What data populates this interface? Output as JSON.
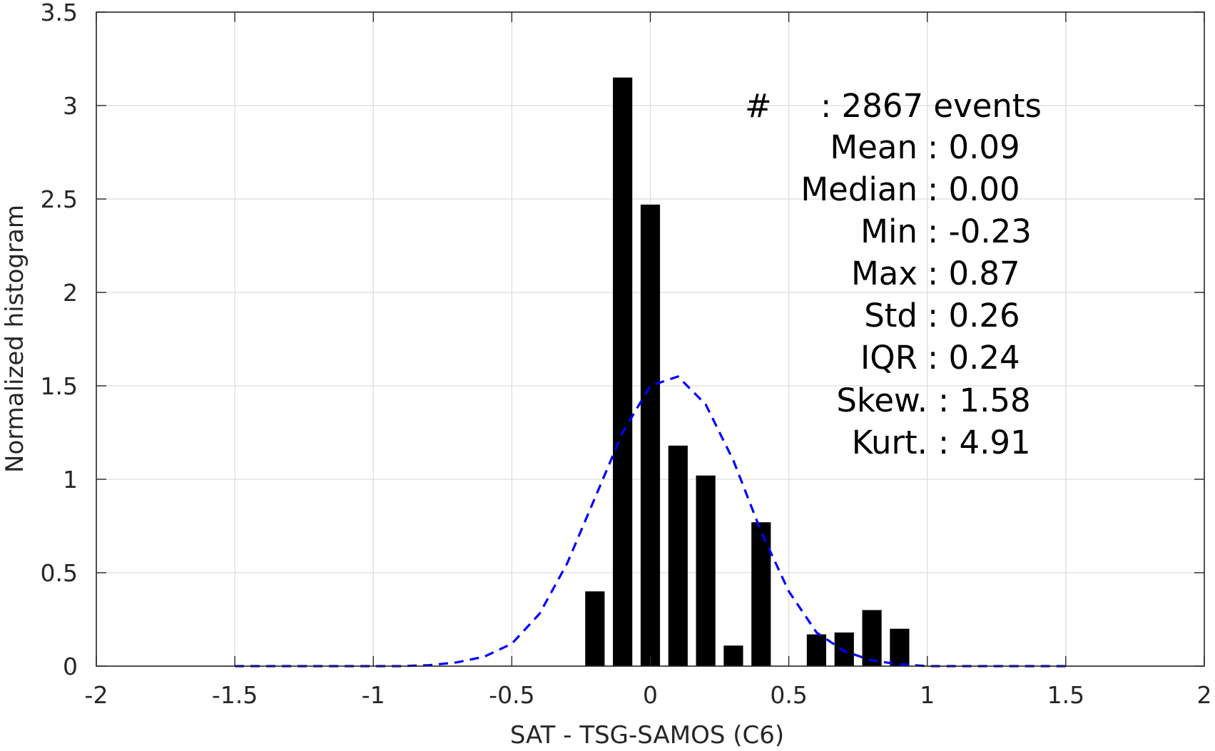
{
  "chart_data": {
    "type": "bar",
    "xlabel": "SAT - TSG-SAMOS (C6)",
    "ylabel": "Normalized histogram",
    "xlim": [
      -2,
      2
    ],
    "ylim": [
      0,
      3.5
    ],
    "grid": true,
    "x_ticks": [
      "-2",
      "-1.5",
      "-1",
      "-0.5",
      "0",
      "0.5",
      "1",
      "1.5",
      "2"
    ],
    "y_ticks": [
      "0",
      "0.5",
      "1",
      "1.5",
      "2",
      "2.5",
      "3",
      "3.5"
    ],
    "bar_width": 0.07,
    "bars": {
      "x": [
        -0.2,
        -0.1,
        0.0,
        0.1,
        0.2,
        0.3,
        0.4,
        0.6,
        0.7,
        0.8,
        0.9
      ],
      "values": [
        0.4,
        3.15,
        2.47,
        1.18,
        1.02,
        0.11,
        0.77,
        0.17,
        0.18,
        0.3,
        0.2
      ]
    },
    "fit_curve": {
      "style": "dashed",
      "color": "#0000ff",
      "x": [
        -1.5,
        -1.4,
        -1.3,
        -1.2,
        -1.1,
        -1.0,
        -0.9,
        -0.8,
        -0.7,
        -0.6,
        -0.5,
        -0.4,
        -0.3,
        -0.2,
        -0.1,
        0.0,
        0.1,
        0.2,
        0.3,
        0.4,
        0.5,
        0.6,
        0.7,
        0.8,
        0.9,
        1.0,
        1.1,
        1.2,
        1.3,
        1.4,
        1.5
      ],
      "y": [
        0,
        0,
        0,
        0,
        0,
        0,
        0,
        0.005,
        0.02,
        0.05,
        0.12,
        0.28,
        0.55,
        0.9,
        1.25,
        1.5,
        1.55,
        1.4,
        1.1,
        0.72,
        0.4,
        0.18,
        0.08,
        0.03,
        0.01,
        0,
        0,
        0,
        0,
        0,
        0
      ]
    },
    "bar_color": "#000000",
    "stats": {
      "count_label": "#",
      "count_value": ": 2867 events",
      "rows": [
        {
          "label": "Mean",
          "value": ": 0.09"
        },
        {
          "label": "Median",
          "value": ": 0.00"
        },
        {
          "label": "Min",
          "value": ": -0.23"
        },
        {
          "label": "Max",
          "value": ": 0.87"
        },
        {
          "label": "Std",
          "value": ": 0.26"
        },
        {
          "label": "IQR",
          "value": ": 0.24"
        },
        {
          "label": "Skew.",
          "value": ": 1.58"
        },
        {
          "label": "Kurt.",
          "value": ": 4.91"
        }
      ]
    }
  }
}
